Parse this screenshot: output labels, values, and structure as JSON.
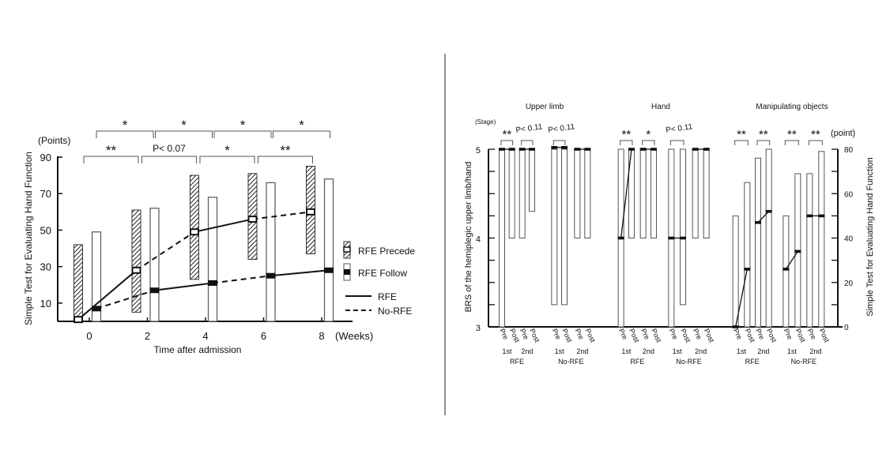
{
  "chart_data": [
    {
      "type": "bar",
      "title": "",
      "xlabel": "Time after admission",
      "x_unit": "(Weeks)",
      "ylabel": "Simple Test for Evaluating Hand Function",
      "y_unit": "(Points)",
      "ylim": [
        0,
        90
      ],
      "yticks": [
        10,
        30,
        50,
        70,
        90
      ],
      "categories": [
        "0",
        "2",
        "4",
        "6",
        "8"
      ],
      "series": [
        {
          "name": "RFE Precede",
          "style": "hatched",
          "low": [
            0,
            5,
            23,
            34,
            37
          ],
          "high": [
            42,
            61,
            80,
            81,
            85
          ],
          "mean": [
            1,
            28,
            49,
            56,
            60
          ]
        },
        {
          "name": "RFE Follow",
          "style": "open",
          "low": [
            0,
            0,
            0,
            0,
            0
          ],
          "high": [
            49,
            62,
            68,
            76,
            78
          ],
          "mean": [
            7,
            17,
            21,
            25,
            28
          ]
        }
      ],
      "line_legend": [
        {
          "name": "RFE",
          "style": "solid"
        },
        {
          "name": "No-RFE",
          "style": "dashed"
        }
      ],
      "legend": "right",
      "significance_top": [
        "*",
        "*",
        "*",
        "*"
      ],
      "significance_bottom": [
        "**",
        "P< 0.07",
        "*",
        "**"
      ]
    },
    {
      "type": "bar",
      "left_axis": {
        "label": "BRS of the hemiplegic upper limb/hand",
        "unit": "(Stage)",
        "range": [
          3,
          5
        ],
        "ticks": [
          "3",
          "4",
          "5"
        ]
      },
      "right_axis": {
        "label": "Simple Test for Evaluating Hand Function",
        "unit": "(point)",
        "range": [
          0,
          80
        ],
        "ticks": [
          "0",
          "20",
          "40",
          "60",
          "80"
        ]
      },
      "panels": [
        {
          "title": "Upper limb",
          "axis": "left",
          "groups": [
            {
              "session": "1st",
              "cond": "RFE",
              "sig": "**",
              "pre": [
                3,
                5,
                5
              ],
              "post": [
                4,
                5,
                5
              ]
            },
            {
              "session": "2nd",
              "cond": "RFE",
              "sig": "P< 0.11",
              "pre": [
                4,
                5,
                5
              ],
              "post": [
                4.3,
                5,
                5
              ]
            },
            {
              "session": "1st",
              "cond": "No-RFE",
              "sig": "P< 0.11",
              "pre": [
                3.25,
                5,
                5.02
              ],
              "post": [
                3.25,
                5,
                5.02
              ]
            },
            {
              "session": "2nd",
              "cond": "No-RFE",
              "sig": "",
              "pre": [
                4,
                5,
                5
              ],
              "post": [
                4,
                5,
                5
              ]
            }
          ]
        },
        {
          "title": "Hand",
          "axis": "left",
          "groups": [
            {
              "session": "1st",
              "cond": "RFE",
              "sig": "**",
              "pre": [
                3,
                5,
                4
              ],
              "post": [
                4,
                5,
                5
              ]
            },
            {
              "session": "2nd",
              "cond": "RFE",
              "sig": "*",
              "pre": [
                4,
                5,
                5
              ],
              "post": [
                4,
                5,
                5
              ]
            },
            {
              "session": "1st",
              "cond": "No-RFE",
              "sig": "P< 0.11",
              "pre": [
                3,
                5,
                4
              ],
              "post": [
                3.25,
                5,
                4
              ]
            },
            {
              "session": "2nd",
              "cond": "No-RFE",
              "sig": "",
              "pre": [
                4,
                5,
                5
              ],
              "post": [
                4,
                5,
                5
              ]
            }
          ]
        },
        {
          "title": "Manipulating objects",
          "axis": "right",
          "groups": [
            {
              "session": "1st",
              "cond": "RFE",
              "sig": "**",
              "pre": [
                0,
                50,
                0
              ],
              "post": [
                0,
                65,
                26
              ]
            },
            {
              "session": "2nd",
              "cond": "RFE",
              "sig": "**",
              "pre": [
                0,
                76,
                47
              ],
              "post": [
                0,
                80,
                52
              ]
            },
            {
              "session": "1st",
              "cond": "No-RFE",
              "sig": "**",
              "pre": [
                0,
                50,
                26
              ],
              "post": [
                0,
                69,
                34
              ]
            },
            {
              "session": "2nd",
              "cond": "No-RFE",
              "sig": "**",
              "pre": [
                0,
                69,
                50
              ],
              "post": [
                0,
                79,
                50
              ]
            }
          ]
        }
      ],
      "bar_labels": [
        "Pre",
        "Post"
      ],
      "cond_labels": [
        "RFE",
        "No-RFE"
      ]
    }
  ]
}
